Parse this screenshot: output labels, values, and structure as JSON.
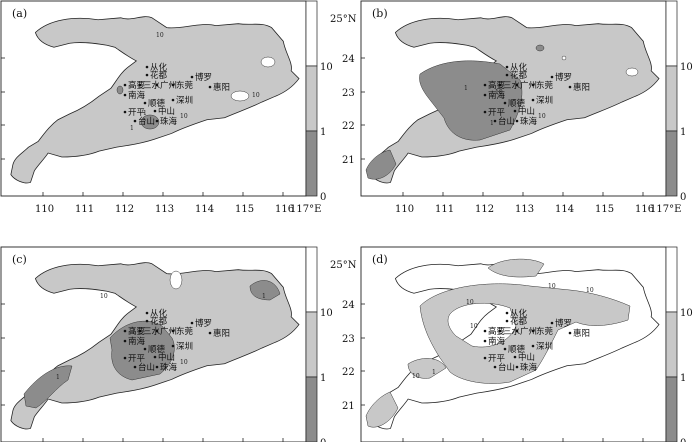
{
  "axes": {
    "x_ticks": [
      "110",
      "111",
      "112",
      "113",
      "114",
      "115",
      "116"
    ],
    "x_last": "117°E",
    "y_ticks": [
      "21",
      "22",
      "23",
      "24"
    ],
    "y_top": "25°N"
  },
  "colorbar": {
    "labels": [
      "0",
      "1",
      "10"
    ],
    "colors": {
      "low": "#8c8c8c",
      "mid": "#c8c8c8",
      "high": "#ffffff"
    }
  },
  "panels": [
    {
      "label": "(a)",
      "cities": [
        "从化",
        "花都",
        "博罗",
        "高要",
        "三水",
        "广州",
        "东莞",
        "惠阳",
        "南海",
        "顺德",
        "深圳",
        "开平",
        "台山",
        "中山",
        "珠海"
      ],
      "contour_labels": [
        "10",
        "10",
        "1",
        "1",
        "10"
      ]
    },
    {
      "label": "(b)",
      "cities": [
        "从化",
        "花都",
        "博罗",
        "高要",
        "三水",
        "广州",
        "东莞",
        "惠阳",
        "南海",
        "顺德",
        "深圳",
        "开平",
        "台山",
        "中山",
        "珠海"
      ],
      "contour_labels": [
        "10",
        "1",
        "1",
        "10"
      ]
    },
    {
      "label": "(c)",
      "cities": [
        "从化",
        "花都",
        "博罗",
        "高要",
        "三水",
        "广州",
        "东莞",
        "惠阳",
        "南海",
        "顺德",
        "深圳",
        "开平",
        "台山",
        "中山",
        "珠海"
      ],
      "contour_labels": [
        "10",
        "1",
        "1",
        "10",
        "1"
      ]
    },
    {
      "label": "(d)",
      "cities": [
        "从化",
        "花都",
        "博罗",
        "高要",
        "三水",
        "广州",
        "东莞",
        "惠阳",
        "南海",
        "顺德",
        "深圳",
        "开平",
        "台山",
        "中山",
        "珠海"
      ],
      "contour_labels": [
        "10",
        "10",
        "10",
        "10",
        "1",
        "10"
      ]
    }
  ]
}
